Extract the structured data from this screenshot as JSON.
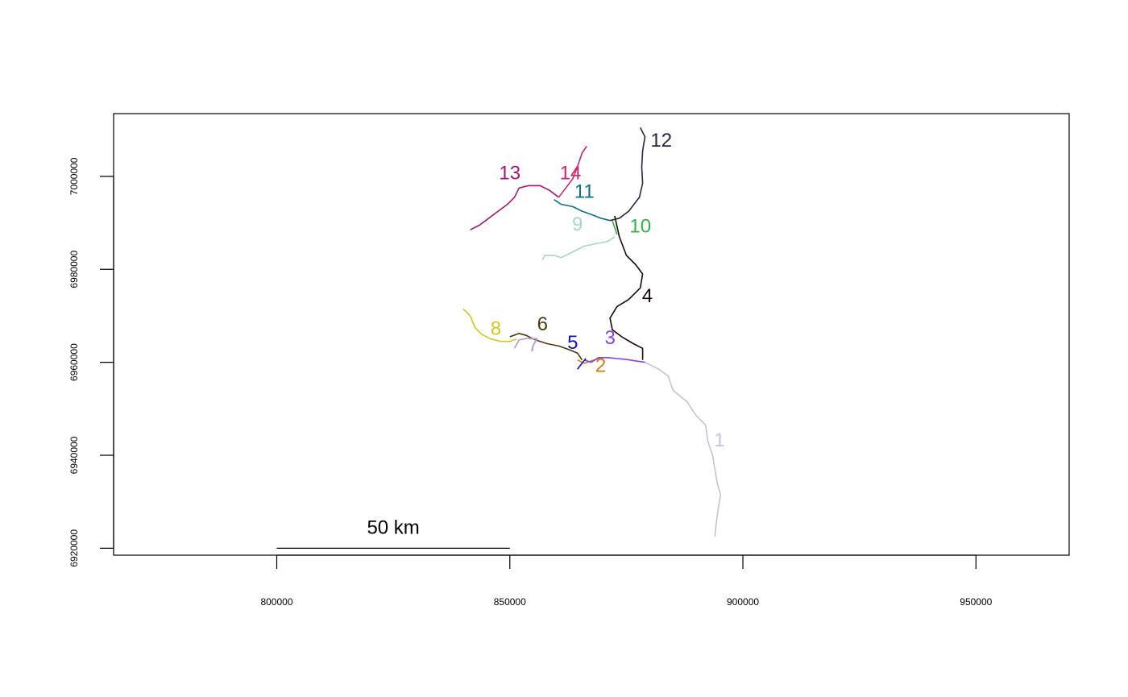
{
  "chart_data": {
    "type": "line",
    "title": "",
    "xlabel": "",
    "ylabel": "",
    "xlim": [
      765000,
      970000
    ],
    "ylim": [
      6918500,
      7013500
    ],
    "x_ticks": [
      800000,
      850000,
      900000,
      950000
    ],
    "x_tick_labels": [
      "800000",
      "850000",
      "900000",
      "950000"
    ],
    "y_ticks": [
      6920000,
      6940000,
      6960000,
      6980000,
      7000000
    ],
    "y_tick_labels": [
      "6920000",
      "6940000",
      "6960000",
      "6980000",
      "7000000"
    ],
    "grid": false,
    "legend": "none",
    "scale_bar": {
      "label": "50 km",
      "x_start": 800000,
      "x_end": 850000,
      "y": 6920000
    },
    "series": [
      {
        "name": "1",
        "color": "#cbbfdc",
        "label_at": [
          895000,
          6943000
        ],
        "points": [
          [
            879000,
            6960000
          ],
          [
            882000,
            6958500
          ],
          [
            884000,
            6957000
          ],
          [
            885000,
            6954000
          ],
          [
            888000,
            6951500
          ],
          [
            890000,
            6948500
          ],
          [
            892000,
            6946500
          ],
          [
            892500,
            6943000
          ],
          [
            893500,
            6940000
          ],
          [
            894000,
            6937000
          ],
          [
            894500,
            6934000
          ],
          [
            895200,
            6931500
          ],
          [
            894700,
            6928500
          ],
          [
            894300,
            6925500
          ],
          [
            894000,
            6922500
          ]
        ]
      },
      {
        "name": "2",
        "color": "#d07e0e",
        "label_at": [
          869500,
          6959000
        ],
        "points": [
          [
            864500,
            6960500
          ],
          [
            866000,
            6959800
          ],
          [
            867500,
            6960300
          ],
          [
            869000,
            6960800
          ],
          [
            870000,
            6961000
          ]
        ]
      },
      {
        "name": "3",
        "color": "#8b3fe0",
        "label_at": [
          871500,
          6965000
        ],
        "points": [
          [
            866000,
            6960500
          ],
          [
            867500,
            6960000
          ],
          [
            869000,
            6961000
          ],
          [
            871000,
            6961000
          ],
          [
            873000,
            6960800
          ],
          [
            875000,
            6960600
          ],
          [
            877000,
            6960300
          ],
          [
            879000,
            6960000
          ]
        ]
      },
      {
        "name": "4",
        "color": "#1a0a0a",
        "label_at": [
          879500,
          6974000
        ],
        "points": [
          [
            872500,
            6991500
          ],
          [
            873500,
            6987000
          ],
          [
            875000,
            6983000
          ],
          [
            877000,
            6981000
          ],
          [
            878500,
            6979000
          ],
          [
            878000,
            6976000
          ],
          [
            875500,
            6973500
          ],
          [
            873000,
            6972000
          ],
          [
            871500,
            6969500
          ],
          [
            872000,
            6967000
          ],
          [
            874000,
            6965500
          ],
          [
            876500,
            6964000
          ],
          [
            878500,
            6963000
          ],
          [
            878500,
            6960500
          ]
        ]
      },
      {
        "name": "5",
        "color": "#1010c8",
        "label_at": [
          863500,
          6964000
        ],
        "points": [
          [
            864500,
            6958500
          ],
          [
            865500,
            6959800
          ],
          [
            866300,
            6960800
          ]
        ]
      },
      {
        "name": "6",
        "color": "#4a3a0a",
        "label_at": [
          857000,
          6968000
        ],
        "points": [
          [
            850000,
            6965500
          ],
          [
            852000,
            6966200
          ],
          [
            853500,
            6965800
          ],
          [
            855500,
            6964800
          ],
          [
            858000,
            6964000
          ],
          [
            860500,
            6963500
          ],
          [
            862500,
            6962800
          ],
          [
            864500,
            6962000
          ],
          [
            865500,
            6960500
          ]
        ]
      },
      {
        "name": "7",
        "color": "#b499d2",
        "label_at": [
          855000,
          6963500
        ],
        "points": [
          [
            851000,
            6963000
          ],
          [
            852000,
            6964800
          ],
          [
            854000,
            6965200
          ],
          [
            856000,
            6965000
          ]
        ]
      },
      {
        "name": "8",
        "color": "#d9c51a",
        "label_at": [
          847000,
          6967000
        ],
        "points": [
          [
            840000,
            6971500
          ],
          [
            841500,
            6970000
          ],
          [
            842500,
            6967500
          ],
          [
            844000,
            6966000
          ],
          [
            846000,
            6965000
          ],
          [
            848000,
            6964500
          ],
          [
            850000,
            6964500
          ],
          [
            851500,
            6965000
          ]
        ]
      },
      {
        "name": "9",
        "color": "#a2dcba",
        "label_at": [
          864500,
          6989500
        ],
        "points": [
          [
            857000,
            6982000
          ],
          [
            857500,
            6983000
          ],
          [
            859500,
            6983000
          ],
          [
            861000,
            6982500
          ],
          [
            863000,
            6983500
          ],
          [
            866000,
            6985000
          ],
          [
            868500,
            6985500
          ],
          [
            871000,
            6986000
          ],
          [
            872500,
            6987000
          ]
        ]
      },
      {
        "name": "10",
        "color": "#31b44a",
        "label_at": [
          878000,
          6989000
        ],
        "points": [
          [
            872000,
            6990500
          ],
          [
            872500,
            6989000
          ],
          [
            873000,
            6987500
          ]
        ]
      },
      {
        "name": "11",
        "color": "#0d6f88",
        "label_at": [
          866000,
          6996500
        ],
        "points": [
          [
            859500,
            6995000
          ],
          [
            861000,
            6994000
          ],
          [
            863500,
            6993500
          ],
          [
            865500,
            6992500
          ],
          [
            867500,
            6991800
          ],
          [
            869500,
            6991000
          ],
          [
            871500,
            6990500
          ]
        ]
      },
      {
        "name": "12",
        "color": "#2c2444",
        "label_at": [
          882500,
          7007500
        ],
        "points": [
          [
            878000,
            7010500
          ],
          [
            879000,
            7008500
          ],
          [
            878500,
            7005500
          ],
          [
            878300,
            7002000
          ],
          [
            878500,
            6998500
          ],
          [
            877800,
            6995500
          ],
          [
            875500,
            6992500
          ],
          [
            873500,
            6991000
          ],
          [
            871500,
            6990500
          ]
        ]
      },
      {
        "name": "13",
        "color": "#a3167a",
        "label_at": [
          850000,
          7000500
        ],
        "points": [
          [
            841500,
            6988500
          ],
          [
            843500,
            6989500
          ],
          [
            845500,
            6991000
          ],
          [
            847500,
            6992500
          ],
          [
            849500,
            6994000
          ],
          [
            851000,
            6995500
          ],
          [
            852000,
            6997500
          ],
          [
            854000,
            6998000
          ],
          [
            856500,
            6998000
          ],
          [
            858500,
            6997000
          ],
          [
            860500,
            6995500
          ]
        ]
      },
      {
        "name": "14",
        "color": "#d3246e",
        "label_at": [
          863000,
          7000500
        ],
        "points": [
          [
            860500,
            6995500
          ],
          [
            862000,
            6997500
          ],
          [
            863500,
            6999500
          ],
          [
            864500,
            7002000
          ],
          [
            865500,
            7005000
          ],
          [
            866500,
            7006500
          ]
        ]
      }
    ]
  }
}
